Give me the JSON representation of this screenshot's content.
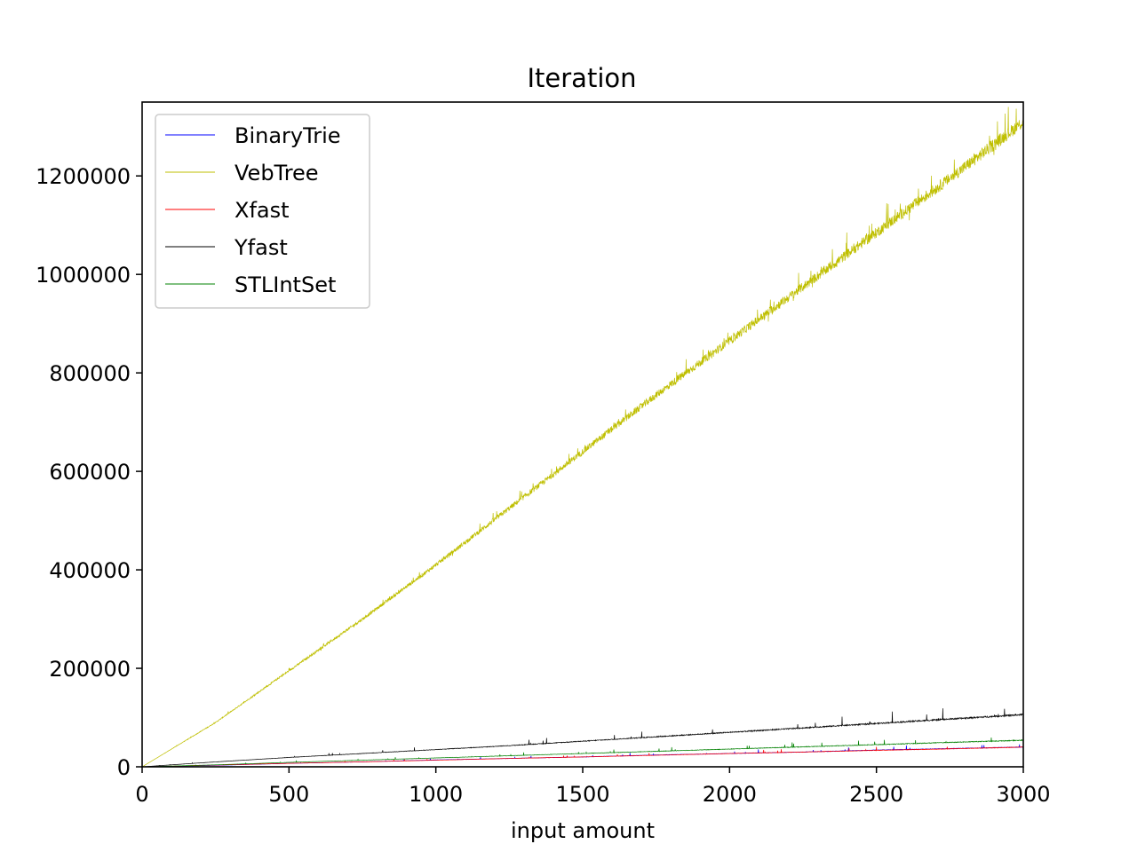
{
  "chart_data": {
    "type": "line",
    "title": "Iteration",
    "xlabel": "input amount",
    "ylabel": "",
    "xlim": [
      0,
      3000
    ],
    "ylim": [
      0,
      1350000
    ],
    "xticks": [
      0,
      500,
      1000,
      1500,
      2000,
      2500,
      3000
    ],
    "yticks": [
      0,
      200000,
      400000,
      600000,
      800000,
      1000000,
      1200000
    ],
    "grid": false,
    "legend_position": "top-left",
    "noisy": true,
    "series": [
      {
        "name": "BinaryTrie",
        "color": "#0000ff",
        "x": [
          0,
          250,
          500,
          750,
          1000,
          1250,
          1500,
          1750,
          2000,
          2250,
          2500,
          2750,
          3000
        ],
        "y": [
          0,
          3000,
          7000,
          10000,
          14000,
          17000,
          20000,
          24000,
          27000,
          30000,
          34000,
          37000,
          40000
        ]
      },
      {
        "name": "VebTree",
        "color": "#bfbf00",
        "x": [
          0,
          250,
          500,
          750,
          1000,
          1250,
          1500,
          1750,
          2000,
          2250,
          2500,
          2750,
          3000
        ],
        "y": [
          0,
          90000,
          195000,
          300000,
          410000,
          525000,
          640000,
          755000,
          865000,
          975000,
          1085000,
          1195000,
          1310000
        ]
      },
      {
        "name": "Xfast",
        "color": "#ff0000",
        "x": [
          0,
          250,
          500,
          750,
          1000,
          1250,
          1500,
          1750,
          2000,
          2250,
          2500,
          2750,
          3000
        ],
        "y": [
          0,
          3500,
          7000,
          10000,
          13500,
          17000,
          20000,
          23500,
          27000,
          30000,
          33500,
          36500,
          40000
        ]
      },
      {
        "name": "Yfast",
        "color": "#000000",
        "x": [
          0,
          250,
          500,
          750,
          1000,
          1250,
          1500,
          1750,
          2000,
          2250,
          2500,
          2750,
          3000
        ],
        "y": [
          0,
          10000,
          19000,
          27000,
          35000,
          43000,
          52000,
          61000,
          70000,
          79000,
          88000,
          97000,
          106000
        ]
      },
      {
        "name": "STLIntSet",
        "color": "#008000",
        "x": [
          0,
          250,
          500,
          750,
          1000,
          1250,
          1500,
          1750,
          2000,
          2250,
          2500,
          2750,
          3000
        ],
        "y": [
          0,
          4000,
          9000,
          13500,
          18000,
          22500,
          27000,
          31500,
          36000,
          40500,
          45000,
          49500,
          54000
        ]
      }
    ]
  }
}
